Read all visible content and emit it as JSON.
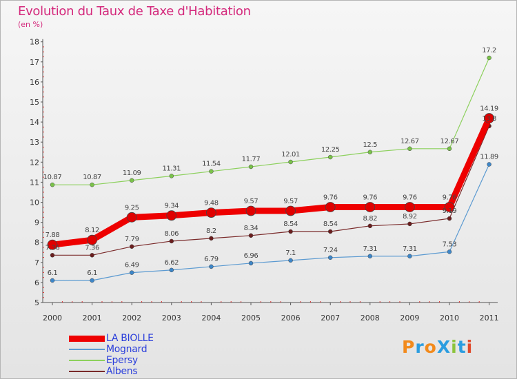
{
  "title": "Evolution du Taux de Taxe d'Habitation",
  "subtitle": "(en %)",
  "logo": {
    "text": "ProXiti",
    "colors": [
      "#f28a1c",
      "#2b9de0",
      "#f28a1c",
      "#2b9de0",
      "#8cc43c",
      "#2b9de0",
      "#e04a2b"
    ]
  },
  "chart_data": {
    "type": "line",
    "x": [
      "2000",
      "2001",
      "2002",
      "2003",
      "2004",
      "2005",
      "2006",
      "2007",
      "2008",
      "2009",
      "2010",
      "2011"
    ],
    "ylim": [
      5,
      18
    ],
    "yticks": [
      5,
      6,
      7,
      8,
      9,
      10,
      11,
      12,
      13,
      14,
      15,
      16,
      17,
      18
    ],
    "grid": "none",
    "legend_placement": "bottom-left",
    "series": [
      {
        "name": "Epersy",
        "color": "#8cd05c",
        "dot": "#7ac24a",
        "width": 1.2,
        "r": 3,
        "values": [
          10.87,
          10.87,
          11.09,
          11.31,
          11.54,
          11.77,
          12.01,
          12.25,
          12.5,
          12.67,
          12.67,
          17.2
        ],
        "labels": [
          "10.87",
          "10.87",
          "11.09",
          "11.31",
          "11.54",
          "11.77",
          "12.01",
          "12.25",
          "12.5",
          "12.67",
          "12.67",
          "17.2"
        ]
      },
      {
        "name": "Albens",
        "color": "#7a2a2a",
        "dot": "#6a1e1e",
        "width": 1.2,
        "r": 3,
        "values": [
          7.36,
          7.36,
          7.79,
          8.06,
          8.2,
          8.34,
          8.54,
          8.54,
          8.82,
          8.92,
          9.19,
          13.8
        ],
        "labels": [
          "7.36",
          "7.36",
          "7.79",
          "8.06",
          "8.2",
          "8.34",
          "8.54",
          "8.54",
          "8.82",
          "8.92",
          "9.19",
          "13.8"
        ]
      },
      {
        "name": "Mognard",
        "color": "#5b9ad1",
        "dot": "#3d86c8",
        "width": 1.2,
        "r": 3,
        "values": [
          6.1,
          6.1,
          6.49,
          6.62,
          6.79,
          6.96,
          7.1,
          7.24,
          7.31,
          7.31,
          7.53,
          11.89
        ],
        "labels": [
          "6.1",
          "6.1",
          "6.49",
          "6.62",
          "6.79",
          "6.96",
          "7.1",
          "7.24",
          "7.31",
          "7.31",
          "7.53",
          "11.89"
        ]
      },
      {
        "name": "LA BIOLLE",
        "color": "#ee0000",
        "dot": "#e00000",
        "width": 9,
        "r": 7,
        "values": [
          7.88,
          8.12,
          9.25,
          9.34,
          9.48,
          9.57,
          9.57,
          9.76,
          9.76,
          9.76,
          9.76,
          14.19
        ],
        "labels": [
          "7.88",
          "8.12",
          "9.25",
          "9.34",
          "9.48",
          "9.57",
          "9.57",
          "9.76",
          "9.76",
          "9.76",
          "9.76",
          "14.19"
        ]
      }
    ],
    "legend": [
      {
        "name": "LA BIOLLE",
        "color": "#ee0000",
        "width": 9
      },
      {
        "name": "Mognard",
        "color": "#5b9ad1",
        "width": 1.5
      },
      {
        "name": "Epersy",
        "color": "#8cd05c",
        "width": 1.5
      },
      {
        "name": "Albens",
        "color": "#7a2a2a",
        "width": 1.5
      }
    ]
  }
}
